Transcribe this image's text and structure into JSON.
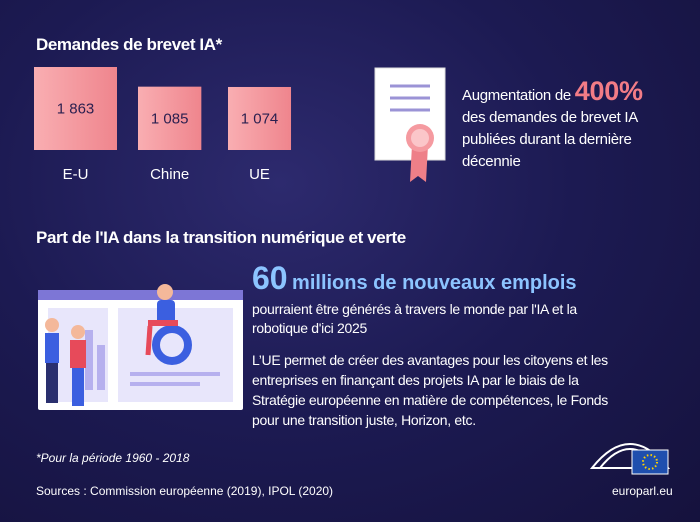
{
  "patents": {
    "title": "Demandes de brevet IA*",
    "categories": [
      "E-U",
      "Chine",
      "UE"
    ],
    "values": [
      1863,
      1085,
      1074
    ],
    "value_labels": [
      "1 863",
      "1 085",
      "1 074"
    ]
  },
  "highlight": {
    "prefix": "Augmentation de",
    "number": "400%",
    "lines": [
      "des demandes de brevet IA",
      "publiées durant la dernière",
      "décennie"
    ]
  },
  "section": {
    "title": "Part de l'IA dans la transition numérique et verte",
    "big_number": "60",
    "big_text": "millions de nouveaux emplois",
    "lines": [
      "pourraient être générés à travers le monde par l'IA et la",
      "robotique d'ici 2025"
    ],
    "paragraph": [
      "L’UE permet de créer des avantages pour les citoyens et les",
      "entreprises en finançant des projets IA par le biais de la",
      "Stratégie européenne en matière de compétences, le Fonds",
      "pour une transition juste, Horizon, etc."
    ]
  },
  "footnote": "*Pour la période 1960 - 2018",
  "sources": "Sources : Commission européenne (2019), IPOL (2020)",
  "website": "europarl.eu"
}
